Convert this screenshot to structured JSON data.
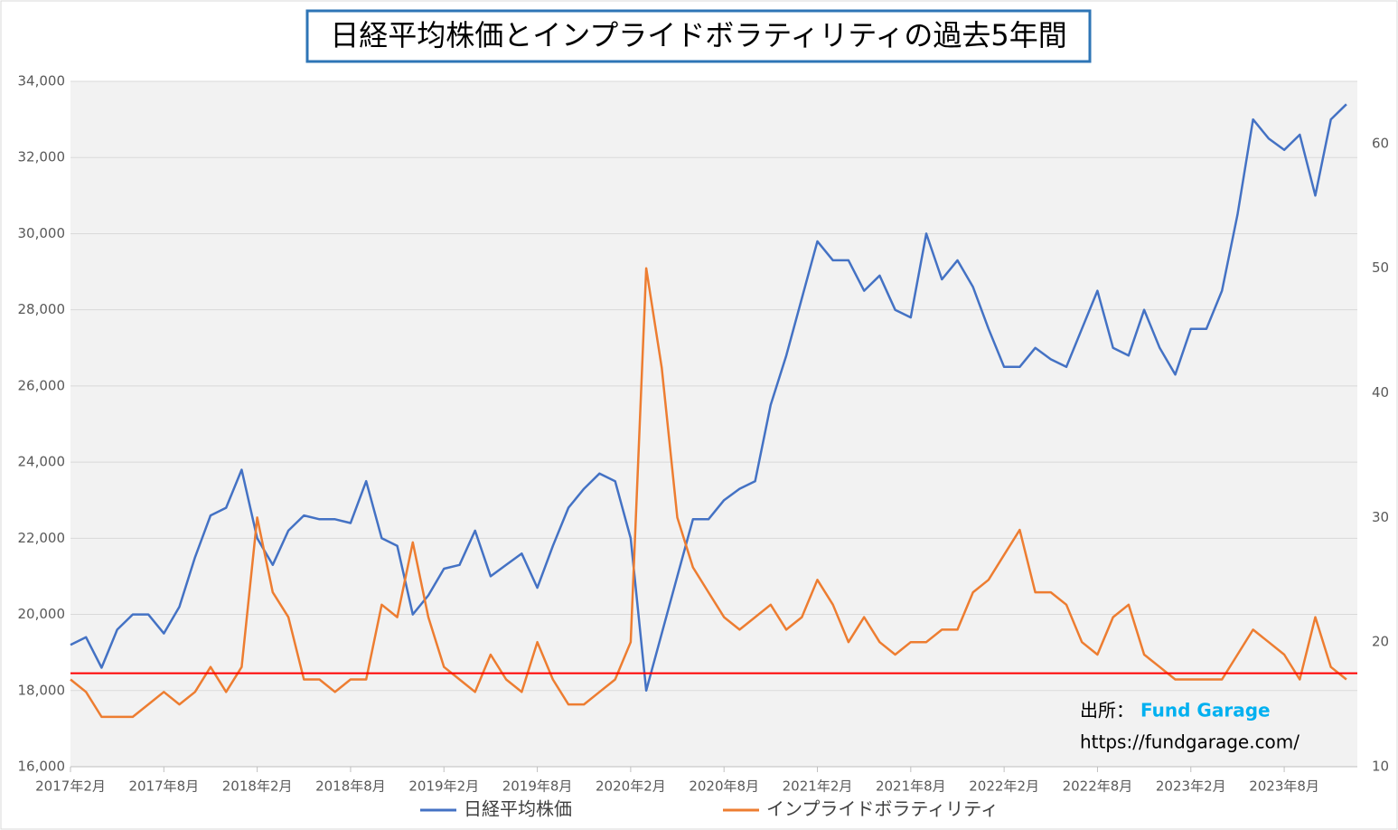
{
  "chart_data": {
    "type": "line",
    "title": "日経平均株価とインプライドボラティリティの過去5年間",
    "categories": [
      "2017年2月",
      null,
      null,
      null,
      null,
      null,
      "2017年8月",
      null,
      null,
      null,
      null,
      null,
      "2018年2月",
      null,
      null,
      null,
      null,
      null,
      "2018年8月",
      null,
      null,
      null,
      null,
      null,
      "2019年2月",
      null,
      null,
      null,
      null,
      null,
      "2019年8月",
      null,
      null,
      null,
      null,
      null,
      "2020年2月",
      null,
      null,
      null,
      null,
      null,
      "2020年8月",
      null,
      null,
      null,
      null,
      null,
      "2021年2月",
      null,
      null,
      null,
      null,
      null,
      "2021年8月",
      null,
      null,
      null,
      null,
      null,
      "2022年2月",
      null,
      null,
      null,
      null,
      null,
      "2022年8月",
      null,
      null,
      null,
      null,
      null,
      "2023年2月",
      null,
      null,
      null,
      null,
      null,
      "2023年8月",
      null,
      null,
      null,
      null
    ],
    "series": [
      {
        "name": "日経平均株価",
        "color": "#4472c4",
        "axis": "y",
        "values": [
          19200,
          19400,
          18600,
          19600,
          20000,
          20000,
          19500,
          20200,
          21500,
          22600,
          22800,
          23800,
          22000,
          21300,
          22200,
          22600,
          22500,
          22500,
          22400,
          23500,
          22000,
          21800,
          20000,
          20500,
          21200,
          21300,
          22200,
          21000,
          21300,
          21600,
          20700,
          21800,
          22800,
          23300,
          23700,
          23500,
          22000,
          18000,
          19500,
          21000,
          22500,
          22500,
          23000,
          23300,
          23500,
          25500,
          26800,
          28300,
          29800,
          29300,
          29300,
          28500,
          28900,
          28000,
          27800,
          30000,
          28800,
          29300,
          28600,
          27500,
          26500,
          26500,
          27000,
          26700,
          26500,
          27500,
          28500,
          27000,
          26800,
          28000,
          27000,
          26300,
          27500,
          27500,
          28500,
          30500,
          33000,
          32500,
          32200,
          32600,
          31000,
          33000,
          33400
        ]
      },
      {
        "name": "インプライドボラティリティ",
        "color": "#ed7d31",
        "axis": "y2",
        "values": [
          17,
          16,
          14,
          14,
          14,
          15,
          16,
          15,
          16,
          18,
          16,
          18,
          30,
          24,
          22,
          17,
          17,
          16,
          17,
          17,
          23,
          22,
          28,
          22,
          18,
          17,
          16,
          19,
          17,
          16,
          20,
          17,
          15,
          15,
          16,
          17,
          20,
          50,
          42,
          30,
          26,
          24,
          22,
          21,
          22,
          23,
          21,
          22,
          25,
          23,
          20,
          22,
          20,
          19,
          20,
          20,
          21,
          21,
          24,
          25,
          27,
          29,
          24,
          24,
          23,
          20,
          19,
          22,
          23,
          19,
          18,
          17,
          17,
          17,
          17,
          19,
          21,
          20,
          19,
          17,
          22,
          18,
          17
        ]
      }
    ],
    "ylim": [
      16000,
      34000
    ],
    "yticks": [
      {
        "value": 16000,
        "label": "16,000"
      },
      {
        "value": 18000,
        "label": "18,000"
      },
      {
        "value": 20000,
        "label": "20,000"
      },
      {
        "value": 22000,
        "label": "22,000"
      },
      {
        "value": 24000,
        "label": "24,000"
      },
      {
        "value": 26000,
        "label": "26,000"
      },
      {
        "value": 28000,
        "label": "28,000"
      },
      {
        "value": 30000,
        "label": "30,000"
      },
      {
        "value": 32000,
        "label": "32,000"
      },
      {
        "value": 34000,
        "label": "34,000"
      }
    ],
    "y2lim": [
      10,
      65
    ],
    "y2ticks": [
      10,
      20,
      30,
      40,
      50,
      60
    ],
    "grid": true,
    "legend": "bottom",
    "reference_line": {
      "value": 17.5,
      "axis": "y2",
      "color": "#ff0000"
    },
    "source_label": "出所：",
    "source_name": "Fund Garage",
    "source_url": "https://fundgarage.com/"
  }
}
